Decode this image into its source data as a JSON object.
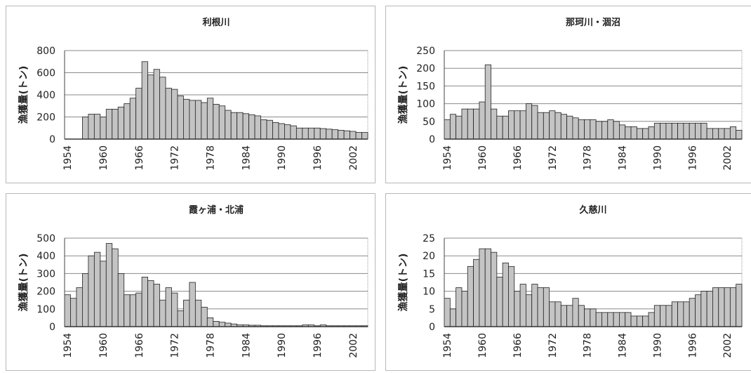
{
  "chart_data": [
    {
      "type": "bar",
      "title": "利根川",
      "ylabel": "漁獲量(トン)",
      "xlabel": "",
      "ylim": [
        0,
        800
      ],
      "yticks": [
        0,
        200,
        400,
        600,
        800
      ],
      "x_tick_labels": [
        "1954",
        "1960",
        "1966",
        "1972",
        "1978",
        "1984",
        "1990",
        "1996",
        "2002"
      ],
      "grid": true,
      "categories": [
        "1954",
        "1955",
        "1956",
        "1957",
        "1958",
        "1959",
        "1960",
        "1961",
        "1962",
        "1963",
        "1964",
        "1965",
        "1966",
        "1967",
        "1968",
        "1969",
        "1970",
        "1971",
        "1972",
        "1973",
        "1974",
        "1975",
        "1976",
        "1977",
        "1978",
        "1979",
        "1980",
        "1981",
        "1982",
        "1983",
        "1984",
        "1985",
        "1986",
        "1987",
        "1988",
        "1989",
        "1990",
        "1991",
        "1992",
        "1993",
        "1994",
        "1995",
        "1996",
        "1997",
        "1998",
        "1999",
        "2000",
        "2001",
        "2002",
        "2003",
        "2004"
      ],
      "values": [
        0,
        0,
        0,
        200,
        225,
        225,
        200,
        270,
        270,
        290,
        320,
        370,
        460,
        700,
        580,
        630,
        560,
        460,
        450,
        390,
        360,
        350,
        350,
        330,
        370,
        315,
        300,
        260,
        240,
        240,
        230,
        220,
        210,
        175,
        170,
        150,
        140,
        130,
        120,
        100,
        100,
        100,
        100,
        95,
        90,
        85,
        80,
        75,
        70,
        60,
        60
      ]
    },
    {
      "type": "bar",
      "title": "那珂川・涸沼",
      "ylabel": "漁獲量(トン)",
      "xlabel": "",
      "ylim": [
        0,
        250
      ],
      "yticks": [
        0,
        50,
        100,
        150,
        200,
        250
      ],
      "x_tick_labels": [
        "1954",
        "1960",
        "1966",
        "1972",
        "1978",
        "1984",
        "1990",
        "1996",
        "2002"
      ],
      "grid": true,
      "categories": [
        "1954",
        "1955",
        "1956",
        "1957",
        "1958",
        "1959",
        "1960",
        "1961",
        "1962",
        "1963",
        "1964",
        "1965",
        "1966",
        "1967",
        "1968",
        "1969",
        "1970",
        "1971",
        "1972",
        "1973",
        "1974",
        "1975",
        "1976",
        "1977",
        "1978",
        "1979",
        "1980",
        "1981",
        "1982",
        "1983",
        "1984",
        "1985",
        "1986",
        "1987",
        "1988",
        "1989",
        "1990",
        "1991",
        "1992",
        "1993",
        "1994",
        "1995",
        "1996",
        "1997",
        "1998",
        "1999",
        "2000",
        "2001",
        "2002",
        "2003",
        "2004"
      ],
      "values": [
        55,
        70,
        65,
        85,
        85,
        85,
        105,
        210,
        85,
        65,
        65,
        80,
        80,
        80,
        100,
        95,
        75,
        75,
        80,
        75,
        70,
        65,
        60,
        55,
        55,
        55,
        50,
        50,
        55,
        50,
        40,
        35,
        35,
        30,
        30,
        35,
        45,
        45,
        45,
        45,
        45,
        45,
        45,
        45,
        45,
        30,
        30,
        30,
        30,
        35,
        25
      ]
    },
    {
      "type": "bar",
      "title": "霞ヶ浦・北浦",
      "ylabel": "漁獲量(トン)",
      "xlabel": "",
      "ylim": [
        0,
        500
      ],
      "yticks": [
        0,
        100,
        200,
        300,
        400,
        500
      ],
      "x_tick_labels": [
        "1954",
        "1960",
        "1966",
        "1972",
        "1978",
        "1984",
        "1990",
        "1996",
        "2002"
      ],
      "grid": true,
      "categories": [
        "1954",
        "1955",
        "1956",
        "1957",
        "1958",
        "1959",
        "1960",
        "1961",
        "1962",
        "1963",
        "1964",
        "1965",
        "1966",
        "1967",
        "1968",
        "1969",
        "1970",
        "1971",
        "1972",
        "1973",
        "1974",
        "1975",
        "1976",
        "1977",
        "1978",
        "1979",
        "1980",
        "1981",
        "1982",
        "1983",
        "1984",
        "1985",
        "1986",
        "1987",
        "1988",
        "1989",
        "1990",
        "1991",
        "1992",
        "1993",
        "1994",
        "1995",
        "1996",
        "1997",
        "1998",
        "1999",
        "2000",
        "2001",
        "2002",
        "2003",
        "2004"
      ],
      "values": [
        180,
        160,
        220,
        300,
        400,
        420,
        370,
        470,
        440,
        300,
        180,
        180,
        190,
        280,
        260,
        240,
        150,
        220,
        190,
        90,
        150,
        250,
        150,
        110,
        50,
        30,
        25,
        20,
        15,
        10,
        10,
        8,
        8,
        5,
        5,
        5,
        5,
        5,
        5,
        5,
        10,
        10,
        5,
        10,
        5,
        5,
        5,
        5,
        5,
        5,
        5
      ]
    },
    {
      "type": "bar",
      "title": "久慈川",
      "ylabel": "漁獲量(トン)",
      "xlabel": "",
      "ylim": [
        0,
        25
      ],
      "yticks": [
        0,
        5,
        10,
        15,
        20,
        25
      ],
      "x_tick_labels": [
        "1954",
        "1960",
        "1966",
        "1972",
        "1978",
        "1984",
        "1990",
        "1996",
        "2002"
      ],
      "grid": true,
      "categories": [
        "1954",
        "1955",
        "1956",
        "1957",
        "1958",
        "1959",
        "1960",
        "1961",
        "1962",
        "1963",
        "1964",
        "1965",
        "1966",
        "1967",
        "1968",
        "1969",
        "1970",
        "1971",
        "1972",
        "1973",
        "1974",
        "1975",
        "1976",
        "1977",
        "1978",
        "1979",
        "1980",
        "1981",
        "1982",
        "1983",
        "1984",
        "1985",
        "1986",
        "1987",
        "1988",
        "1989",
        "1990",
        "1991",
        "1992",
        "1993",
        "1994",
        "1995",
        "1996",
        "1997",
        "1998",
        "1999",
        "2000",
        "2001",
        "2002",
        "2003",
        "2004"
      ],
      "values": [
        8,
        5,
        11,
        10,
        17,
        19,
        22,
        22,
        21,
        14,
        18,
        17,
        10,
        12,
        9,
        12,
        11,
        11,
        7,
        7,
        6,
        6,
        8,
        6,
        5,
        5,
        4,
        4,
        4,
        4,
        4,
        4,
        3,
        3,
        3,
        4,
        6,
        6,
        6,
        7,
        7,
        7,
        8,
        9,
        10,
        10,
        11,
        11,
        11,
        11,
        12
      ]
    }
  ],
  "colors": {
    "bar_fill": "#c4c4c4",
    "bar_stroke": "#222222",
    "grid": "#8a8a8a",
    "panel_border": "#b8b8b8"
  }
}
